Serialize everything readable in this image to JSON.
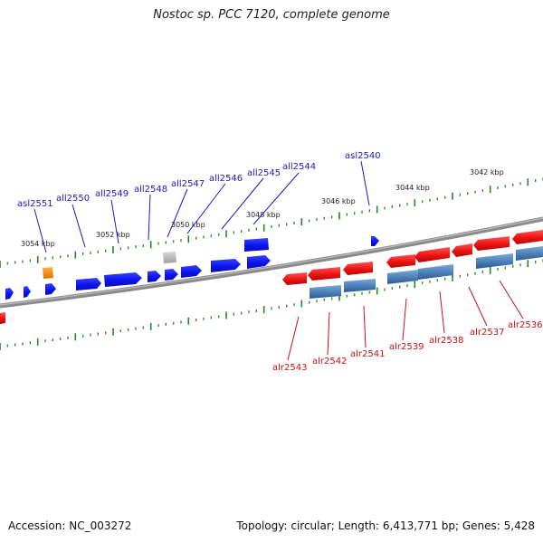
{
  "title": "Nostoc sp. PCC 7120, complete genome",
  "footer": {
    "accession": "Accession: NC_003272",
    "summary": "Topology: circular; Length: 6,413,771 bp; Genes: 5,428"
  },
  "colors": {
    "forward_gene": "#0a14ee",
    "reverse_gene": "#ee1111",
    "reverse_gene_secondary": "#4a7fb8",
    "special_gene": "#f08a0a",
    "pseudo_gene": "#b9b9b9",
    "forward_label": "#1a1acc",
    "reverse_label": "#cc1111",
    "tick": "#228822",
    "backbone": "#888888"
  },
  "kbp_labels": [
    "3054 kbp",
    "3052 kbp",
    "3050 kbp",
    "3048 kbp",
    "3046 kbp",
    "3044 kbp",
    "3042 kbp"
  ],
  "forward_labels": [
    "asl2551",
    "all2550",
    "all2549",
    "all2548",
    "all2547",
    "all2546",
    "all2545",
    "all2544",
    "asl2540"
  ],
  "reverse_labels": [
    "alr2543",
    "alr2542",
    "alr2541",
    "alr2539",
    "alr2538",
    "alr2537",
    "alr2536"
  ]
}
